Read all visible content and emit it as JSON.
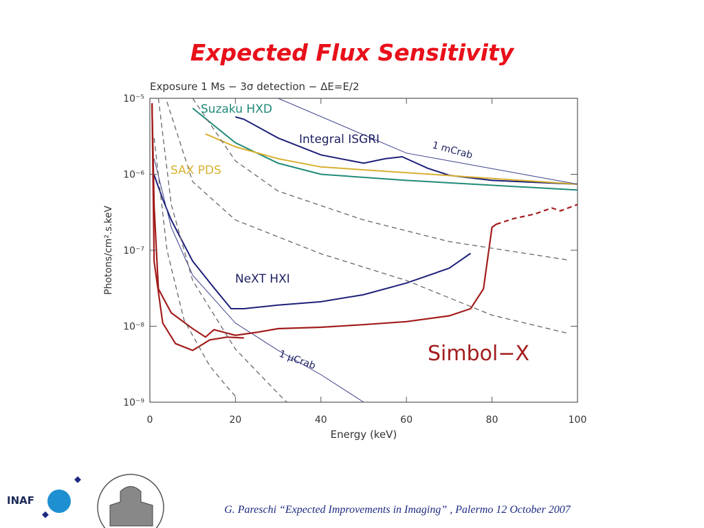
{
  "title": "Expected Flux Sensitivity",
  "footer": "G. Pareschi “Expected Improvements in Imaging” , Palermo 12 October 2007",
  "logo": "INAF",
  "chart_data": {
    "type": "line",
    "subtitle": "Exposure 1 Ms − 3σ detection − ΔE=E/2",
    "xlabel": "Energy (keV)",
    "ylabel": "Photons/cm².s.keV",
    "log_y": true,
    "xlim": [
      0,
      100
    ],
    "xticks": [
      0,
      20,
      40,
      60,
      80,
      100
    ],
    "ylim": [
      1e-09,
      1e-05
    ],
    "yticks": [
      {
        "value": 1e-09,
        "label": "10⁻⁹"
      },
      {
        "value": 1e-08,
        "label": "10⁻⁸"
      },
      {
        "value": 1e-07,
        "label": "10⁻⁷"
      },
      {
        "value": 1e-06,
        "label": "10⁻⁶"
      },
      {
        "value": 1e-05,
        "label": "10⁻⁵"
      }
    ],
    "series": [
      {
        "name": "Suzaku HXD",
        "color": "#1f8a78",
        "x": [
          10,
          20,
          30,
          40,
          60,
          100
        ],
        "values": [
          7.4e-06,
          2.6e-06,
          1.4e-06,
          1e-06,
          8.3e-07,
          6.2e-07
        ]
      },
      {
        "name": "Integral ISGRI",
        "color": "#1c1f78",
        "x": [
          20,
          22,
          30,
          40,
          50,
          55,
          59,
          65,
          70,
          80,
          100
        ],
        "values": [
          5.7e-06,
          5.3e-06,
          3e-06,
          1.8e-06,
          1.4e-06,
          1.6e-06,
          1.7e-06,
          1.2e-06,
          9.7e-07,
          8.3e-07,
          7.4e-07
        ]
      },
      {
        "name": "SAX PDS",
        "color": "#d8b030",
        "x": [
          13,
          20,
          30,
          40,
          100
        ],
        "values": [
          3.4e-06,
          2.3e-06,
          1.6e-06,
          1.25e-06,
          7.4e-07
        ]
      },
      {
        "name": "1 mCrab",
        "color": "#3a3f8a",
        "x": [
          30,
          60,
          100
        ],
        "values": [
          1e-05,
          1.9e-06,
          7.4e-07
        ]
      },
      {
        "name": "NeXT HXI",
        "color": "#1c1f78",
        "x": [
          1,
          3,
          5,
          10,
          15,
          19,
          22,
          30,
          40,
          50,
          60,
          70,
          75
        ],
        "values": [
          9.8e-07,
          4.7e-07,
          2.5e-07,
          7.2e-08,
          3.2e-08,
          1.7e-08,
          1.7e-08,
          1.9e-08,
          2.1e-08,
          2.6e-08,
          3.7e-08,
          5.8e-08,
          9.1e-08
        ]
      },
      {
        "name": "1 μCrab",
        "color": "#3a3f8a",
        "x": [
          1,
          5,
          10,
          20,
          30,
          40,
          50
        ],
        "values": [
          1.6e-06,
          2e-07,
          4.7e-08,
          1.1e-08,
          4.8e-09,
          2.3e-09,
          1e-09
        ]
      },
      {
        "name": "Simbol−X",
        "color": "#a31c1c",
        "x": [
          0.5,
          1,
          2,
          5,
          10,
          13,
          15,
          20,
          25,
          30,
          40,
          50,
          60,
          70,
          75,
          78,
          80,
          81
        ],
        "values": [
          8.6e-06,
          3.8e-07,
          3.1e-08,
          1.5e-08,
          9.3e-09,
          7.2e-09,
          9e-09,
          7.6e-09,
          8.3e-09,
          9.3e-09,
          9.7e-09,
          1.05e-08,
          1.15e-08,
          1.37e-08,
          1.7e-08,
          3.1e-08,
          2e-07,
          2.2e-07
        ]
      },
      {
        "color": "#a31c1c",
        "x": [
          0.5,
          1,
          3,
          6,
          10,
          14,
          18,
          22
        ],
        "values": [
          8.6e-06,
          7.1e-08,
          1.1e-08,
          5.9e-09,
          4.8e-09,
          6.6e-09,
          7.2e-09,
          7e-09
        ]
      },
      {
        "color": "#a31c1c",
        "style": "dashed",
        "x": [
          81,
          85,
          90,
          94,
          96,
          100
        ],
        "values": [
          2.2e-07,
          2.6e-07,
          3e-07,
          3.6e-07,
          3.3e-07,
          4e-07
        ]
      },
      {
        "color": "#666666",
        "style": "dashed",
        "x": [
          4,
          10,
          20,
          40,
          60,
          80,
          98
        ],
        "values": [
          9e-06,
          8e-07,
          2.5e-07,
          9e-08,
          4e-08,
          1.4e-08,
          8e-09
        ]
      },
      {
        "color": "#666666",
        "style": "dashed",
        "x": [
          10,
          20,
          30,
          50,
          70,
          98
        ],
        "values": [
          1e-05,
          1.5e-06,
          6e-07,
          2.5e-07,
          1.3e-07,
          7.4e-08
        ]
      },
      {
        "color": "#666666",
        "style": "dashed",
        "x": [
          2,
          5,
          10,
          20,
          30,
          32
        ],
        "values": [
          1e-05,
          4e-07,
          4e-08,
          5e-09,
          1.3e-09,
          1e-09
        ]
      },
      {
        "color": "#666666",
        "style": "dashed",
        "x": [
          1,
          4,
          8,
          14,
          18,
          20
        ],
        "values": [
          3e-06,
          1e-07,
          1.2e-08,
          3e-09,
          1.6e-09,
          1.2e-09
        ]
      }
    ]
  }
}
